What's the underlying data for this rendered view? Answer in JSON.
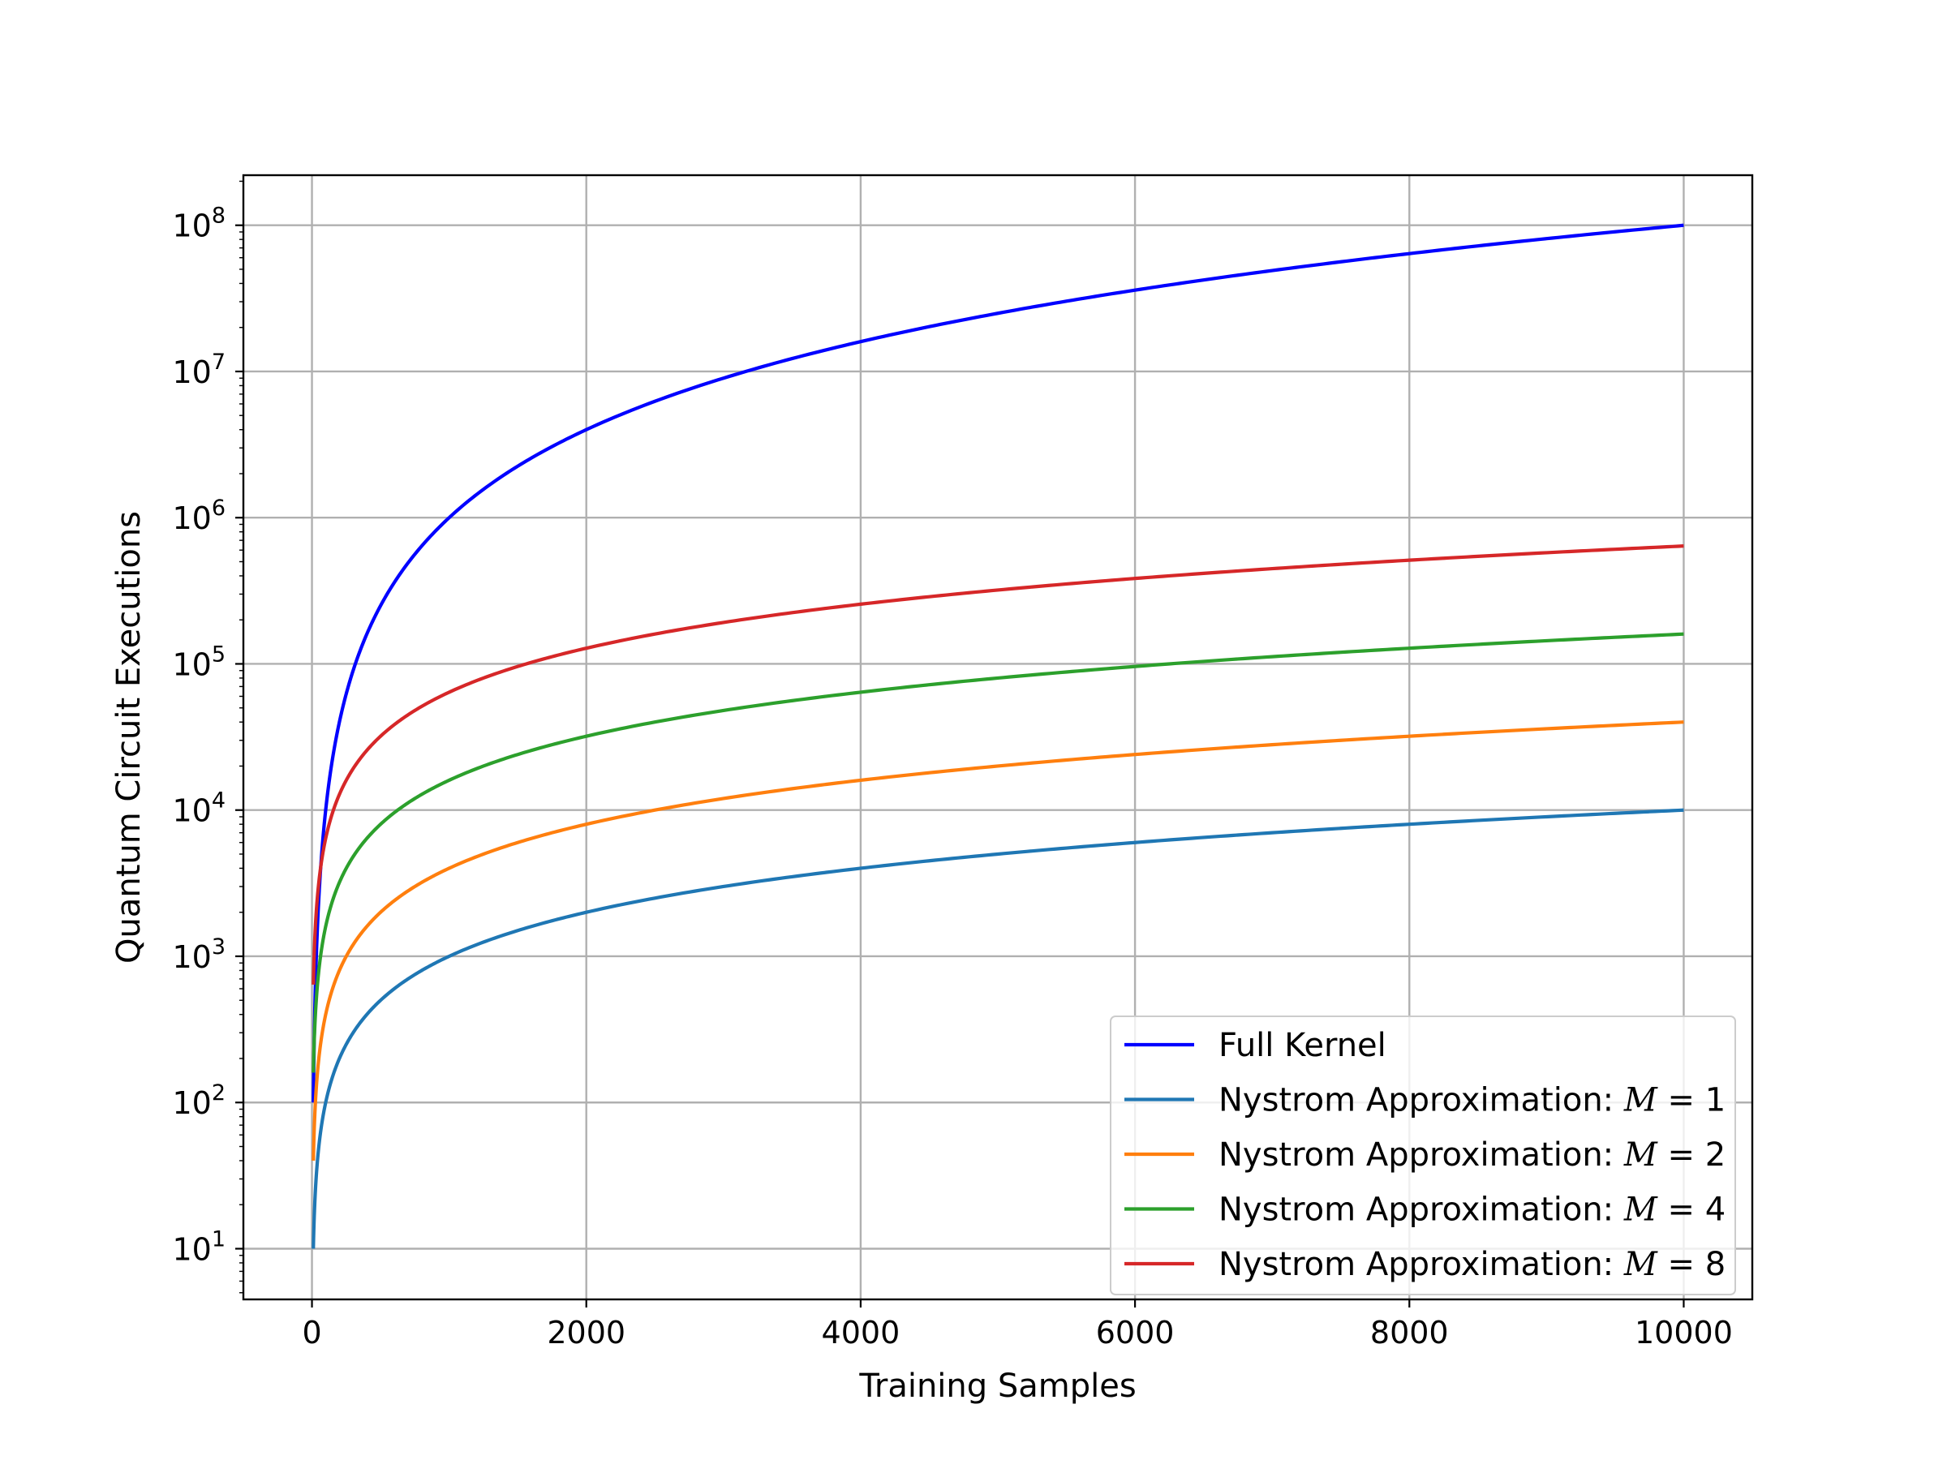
{
  "chart_data": {
    "type": "line",
    "xlabel": "Training Samples",
    "ylabel": "Quantum Circuit Executions",
    "xlim": [
      -500,
      10500
    ],
    "ylim": [
      4.5,
      220000000
    ],
    "yscale": "log",
    "grid": true,
    "legend_position": "lower right",
    "x_ticks": [
      {
        "value": 0,
        "label": "0"
      },
      {
        "value": 2000,
        "label": "2000"
      },
      {
        "value": 4000,
        "label": "4000"
      },
      {
        "value": 6000,
        "label": "6000"
      },
      {
        "value": 8000,
        "label": "8000"
      },
      {
        "value": 10000,
        "label": "10000"
      }
    ],
    "y_ticks": [
      {
        "value": 10,
        "base": "10",
        "exp": "1"
      },
      {
        "value": 100,
        "base": "10",
        "exp": "2"
      },
      {
        "value": 1000,
        "base": "10",
        "exp": "3"
      },
      {
        "value": 10000,
        "base": "10",
        "exp": "4"
      },
      {
        "value": 100000,
        "base": "10",
        "exp": "5"
      },
      {
        "value": 1000000,
        "base": "10",
        "exp": "6"
      },
      {
        "value": 10000000,
        "base": "10",
        "exp": "7"
      },
      {
        "value": 100000000,
        "base": "10",
        "exp": "8"
      }
    ],
    "series": [
      {
        "name": "Full Kernel",
        "label_prefix": "Full Kernel",
        "label_var": "",
        "label_value": "",
        "color": "#0000ff",
        "x": [
          10,
          50,
          100,
          200,
          300,
          500,
          750,
          1000,
          1500,
          2000,
          3000,
          4000,
          5000,
          6000,
          7000,
          8000,
          9000,
          10000
        ],
        "y": [
          100,
          2500,
          10000,
          40000,
          90000,
          250000,
          562500,
          1000000,
          2250000,
          4000000,
          9000000,
          16000000,
          25000000,
          36000000,
          49000000,
          64000000,
          81000000,
          100000000
        ]
      },
      {
        "name": "Nystrom Approximation: M = 1",
        "label_prefix": "Nystrom Approximation: ",
        "label_var": "M",
        "label_value": " = 1",
        "color": "#1f77b4",
        "x": [
          10,
          50,
          100,
          200,
          300,
          500,
          750,
          1000,
          1500,
          2000,
          3000,
          4000,
          5000,
          6000,
          7000,
          8000,
          9000,
          10000
        ],
        "y": [
          10,
          50,
          100,
          200,
          300,
          500,
          750,
          1000,
          1500,
          2000,
          3000,
          4000,
          5000,
          6000,
          7000,
          8000,
          9000,
          10000
        ]
      },
      {
        "name": "Nystrom Approximation: M = 2",
        "label_prefix": "Nystrom Approximation: ",
        "label_var": "M",
        "label_value": " = 2",
        "color": "#ff7f0e",
        "x": [
          10,
          50,
          100,
          200,
          300,
          500,
          750,
          1000,
          1500,
          2000,
          3000,
          4000,
          5000,
          6000,
          7000,
          8000,
          9000,
          10000
        ],
        "y": [
          40,
          200,
          400,
          800,
          1200,
          2000,
          3000,
          4000,
          6000,
          8000,
          12000,
          16000,
          20000,
          24000,
          28000,
          32000,
          36000,
          40000
        ]
      },
      {
        "name": "Nystrom Approximation: M = 4",
        "label_prefix": "Nystrom Approximation: ",
        "label_var": "M",
        "label_value": " = 4",
        "color": "#2ca02c",
        "x": [
          10,
          50,
          100,
          200,
          300,
          500,
          750,
          1000,
          1500,
          2000,
          3000,
          4000,
          5000,
          6000,
          7000,
          8000,
          9000,
          10000
        ],
        "y": [
          160,
          800,
          1600,
          3200,
          4800,
          8000,
          12000,
          16000,
          24000,
          32000,
          48000,
          64000,
          80000,
          96000,
          112000,
          128000,
          144000,
          160000
        ]
      },
      {
        "name": "Nystrom Approximation: M = 8",
        "label_prefix": "Nystrom Approximation: ",
        "label_var": "M",
        "label_value": " = 8",
        "color": "#d62728",
        "x": [
          10,
          50,
          100,
          200,
          300,
          500,
          750,
          1000,
          1500,
          2000,
          3000,
          4000,
          5000,
          6000,
          7000,
          8000,
          9000,
          10000
        ],
        "y": [
          640,
          3200,
          6400,
          12800,
          19200,
          32000,
          48000,
          64000,
          96000,
          128000,
          192000,
          256000,
          320000,
          384000,
          448000,
          512000,
          576000,
          640000
        ]
      }
    ]
  }
}
